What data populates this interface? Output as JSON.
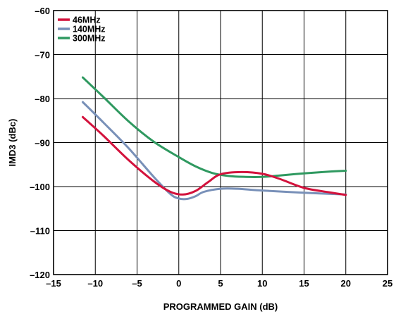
{
  "chart_data": {
    "type": "line",
    "title": "",
    "xlabel": "PROGRAMMED GAIN (dB)",
    "ylabel": "IMD3 (dBc)",
    "xlim": [
      -15,
      25
    ],
    "ylim": [
      -120,
      -60
    ],
    "xticks": [
      -15,
      -10,
      -5,
      0,
      5,
      10,
      15,
      20,
      25
    ],
    "yticks": [
      -60,
      -70,
      -80,
      -90,
      -100,
      -110,
      -120
    ],
    "xtick_labels": [
      "–15",
      "–10",
      "–5",
      "0",
      "5",
      "10",
      "15",
      "20",
      "25"
    ],
    "ytick_labels": [
      "–60",
      "–70",
      "–80",
      "–90",
      "–100",
      "–110",
      "–120"
    ],
    "grid": true,
    "legend_position": "top-left",
    "series": [
      {
        "name": "46MHz",
        "color": "#d3123c",
        "x": [
          -11.5,
          -9,
          -6,
          -3,
          -1,
          0.5,
          2,
          3.5,
          5,
          7.5,
          10,
          12,
          15,
          18,
          20
        ],
        "y": [
          -84.2,
          -88.5,
          -94.0,
          -98.8,
          -101.2,
          -101.8,
          -101.0,
          -99.0,
          -97.2,
          -96.7,
          -97.1,
          -98.2,
          -100.3,
          -101.3,
          -101.9
        ]
      },
      {
        "name": "140MHz",
        "color": "#7890b8",
        "x": [
          -11.5,
          -9,
          -6,
          -3,
          -1,
          0,
          1,
          2,
          3,
          5,
          7,
          10,
          15,
          20
        ],
        "y": [
          -80.8,
          -85.5,
          -91.3,
          -97.8,
          -101.7,
          -102.7,
          -102.8,
          -102.2,
          -101.2,
          -100.5,
          -100.5,
          -100.9,
          -101.4,
          -101.8
        ]
      },
      {
        "name": "300MHz",
        "color": "#2f9960",
        "x": [
          -11.5,
          -9,
          -6,
          -3,
          0,
          2,
          4,
          6,
          8,
          10,
          12,
          15,
          18,
          20
        ],
        "y": [
          -75.2,
          -79.7,
          -85.2,
          -89.8,
          -93.3,
          -95.4,
          -96.9,
          -97.6,
          -97.8,
          -97.8,
          -97.5,
          -97.0,
          -96.6,
          -96.4
        ]
      }
    ]
  }
}
